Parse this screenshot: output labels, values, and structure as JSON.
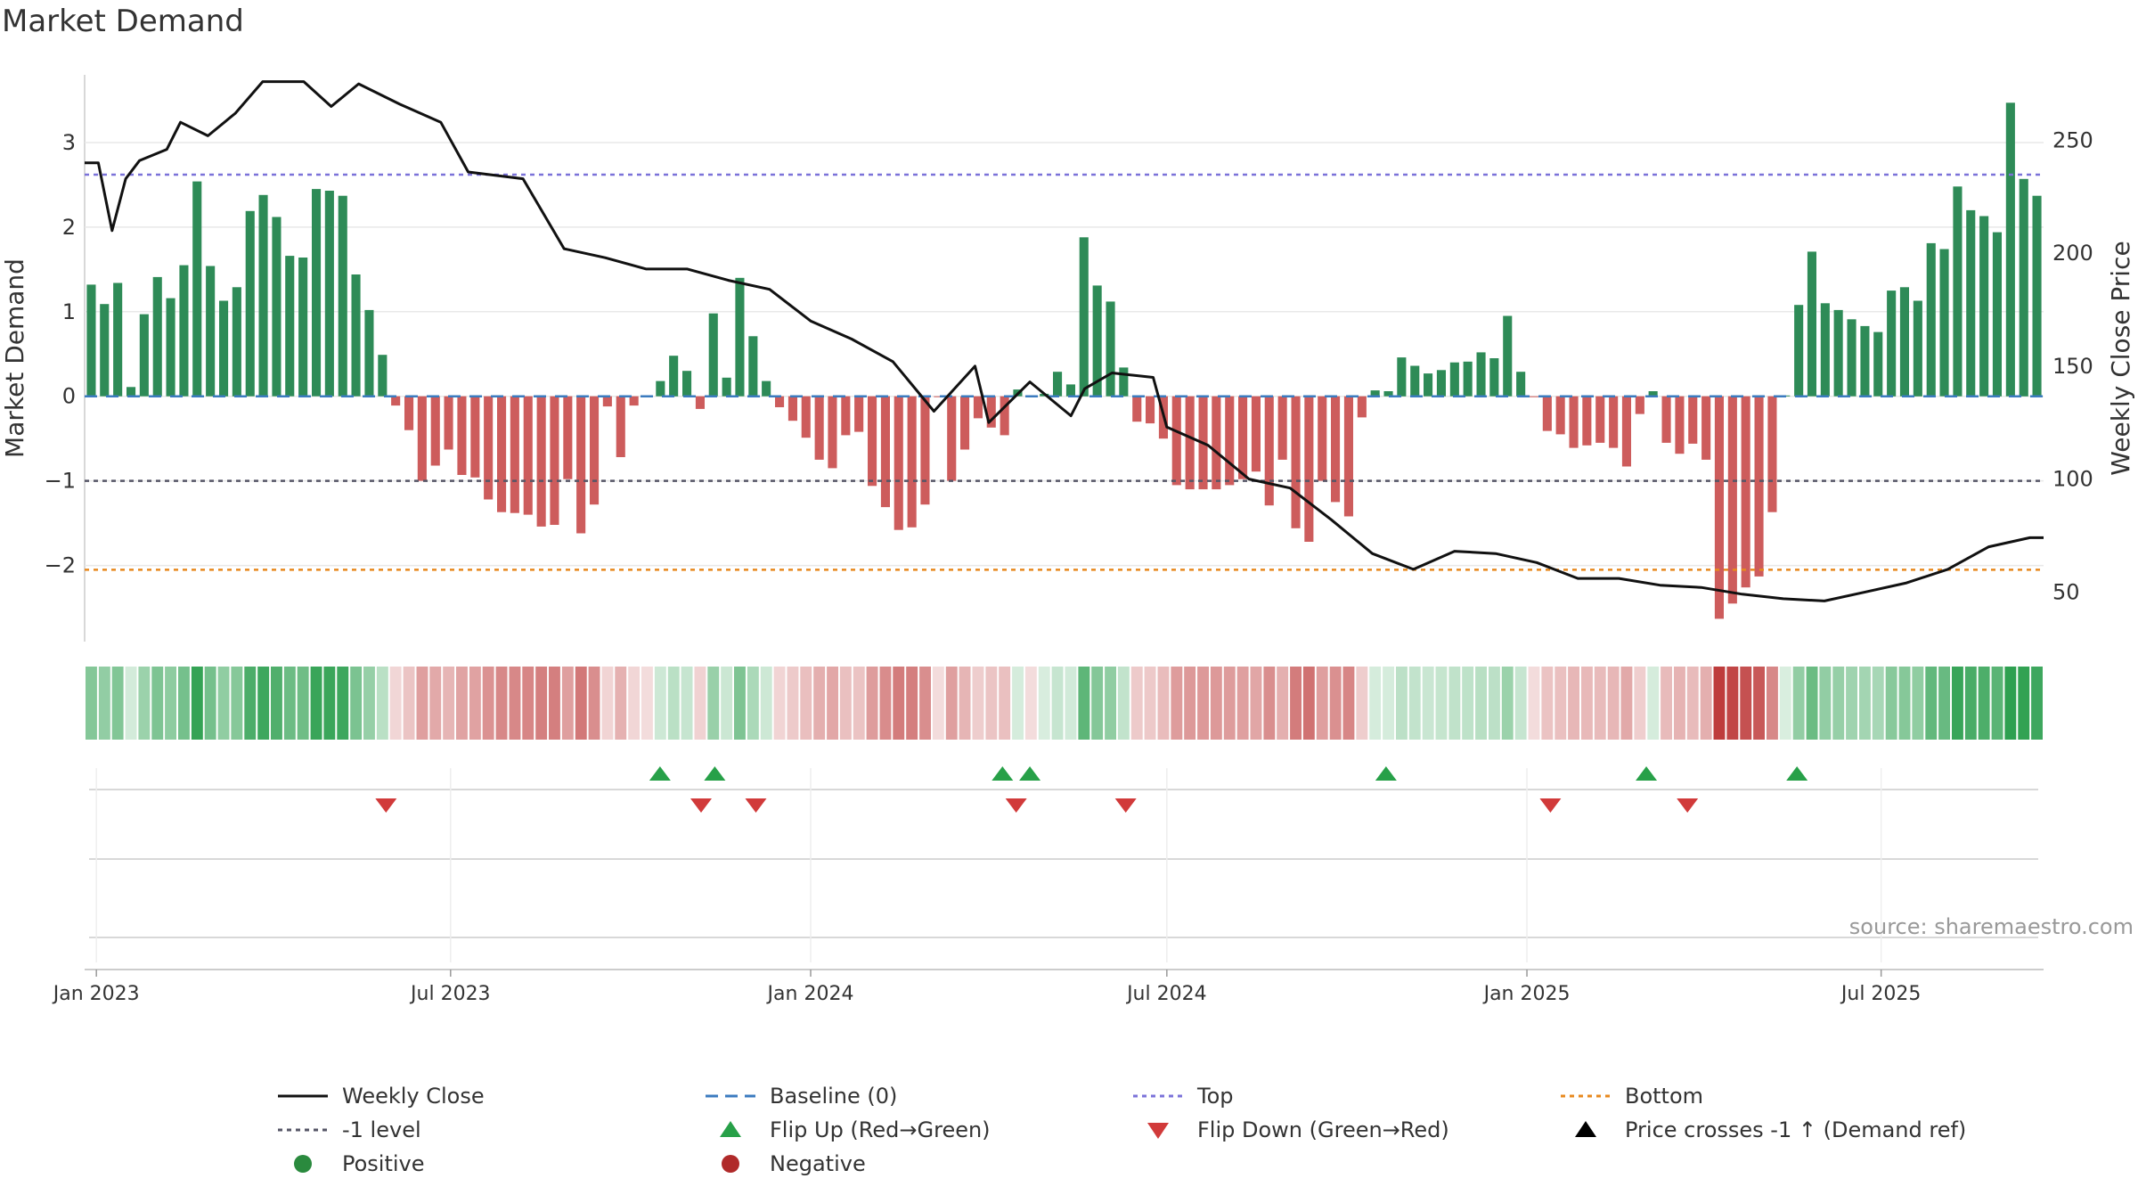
{
  "chart_data": {
    "type": "bar",
    "title": "Market Demand",
    "ylabel_left": "Market Demand",
    "ylabel_right": "Weekly Close Price",
    "left_ylim": [
      -2.9,
      3.8
    ],
    "right_ylim": [
      28,
      279
    ],
    "left_ticks": [
      3,
      2,
      1,
      0,
      -1,
      -2
    ],
    "left_tick_labels": [
      "3",
      "2",
      "1",
      "0",
      "−1",
      "−2"
    ],
    "right_ticks": [
      250,
      200,
      150,
      100,
      50
    ],
    "right_tick_labels": [
      "250",
      "200",
      "150",
      "100",
      "50"
    ],
    "x_start": "2022-12-26",
    "x_end": "2025-09-22",
    "x_ticks": [
      "2023-01-01",
      "2023-07-01",
      "2024-01-01",
      "2024-07-01",
      "2025-01-01",
      "2025-07-01"
    ],
    "x_tick_labels": [
      "Jan 2023",
      "Jul 2023",
      "Jan 2024",
      "Jul 2024",
      "Jan 2025",
      "Jul 2025"
    ],
    "top_level": 2.62,
    "bottom_level": -2.05,
    "minus_one_level": -1,
    "baseline": 0,
    "demand_values": [
      1.32,
      1.09,
      1.34,
      0.11,
      0.97,
      1.41,
      1.16,
      1.55,
      2.54,
      1.54,
      1.13,
      1.29,
      2.19,
      2.38,
      2.12,
      1.66,
      1.64,
      2.45,
      2.43,
      2.37,
      1.44,
      1.02,
      0.49,
      -0.11,
      -0.4,
      -1.0,
      -0.82,
      -0.63,
      -0.93,
      -0.96,
      -1.22,
      -1.37,
      -1.38,
      -1.4,
      -1.54,
      -1.52,
      -0.98,
      -1.62,
      -1.28,
      -0.12,
      -0.72,
      -0.11,
      -0.01,
      0.18,
      0.48,
      0.3,
      -0.15,
      0.98,
      0.22,
      1.4,
      0.71,
      0.18,
      -0.13,
      -0.29,
      -0.49,
      -0.75,
      -0.85,
      -0.46,
      -0.42,
      -1.06,
      -1.31,
      -1.58,
      -1.55,
      -1.28,
      -0.01,
      -1.0,
      -0.63,
      -0.26,
      -0.37,
      -0.46,
      0.08,
      -0.01,
      0.03,
      0.29,
      0.14,
      1.88,
      1.31,
      1.12,
      0.34,
      -0.3,
      -0.32,
      -0.5,
      -1.05,
      -1.1,
      -1.1,
      -1.1,
      -1.05,
      -0.98,
      -0.89,
      -1.29,
      -0.75,
      -1.56,
      -1.72,
      -1.0,
      -1.25,
      -1.42,
      -0.25,
      0.07,
      0.06,
      0.46,
      0.36,
      0.27,
      0.31,
      0.4,
      0.41,
      0.52,
      0.45,
      0.95,
      0.29,
      -0.01,
      -0.41,
      -0.45,
      -0.61,
      -0.58,
      -0.55,
      -0.61,
      -0.83,
      -0.21,
      0.06,
      -0.55,
      -0.68,
      -0.56,
      -0.75,
      -2.63,
      -2.45,
      -2.26,
      -2.13,
      -1.37,
      0.01,
      1.08,
      1.71,
      1.1,
      1.02,
      0.91,
      0.83,
      0.76,
      1.25,
      1.29,
      1.13,
      1.81,
      1.74,
      2.48,
      2.2,
      2.13,
      1.94,
      3.47,
      2.57,
      2.37
    ],
    "price_x": [
      "2022-12-26",
      "2023-01-02",
      "2023-01-09",
      "2023-01-16",
      "2023-01-23",
      "2023-02-06",
      "2023-02-13",
      "2023-02-27",
      "2023-03-13",
      "2023-03-27",
      "2023-04-17",
      "2023-05-01",
      "2023-05-15",
      "2023-06-05",
      "2023-06-26",
      "2023-07-10",
      "2023-08-07",
      "2023-08-28",
      "2023-09-18",
      "2023-10-09",
      "2023-10-30",
      "2023-11-20",
      "2023-12-11",
      "2024-01-01",
      "2024-01-22",
      "2024-02-12",
      "2024-03-04",
      "2024-03-25",
      "2024-04-01",
      "2024-04-22",
      "2024-05-13",
      "2024-05-20",
      "2024-06-03",
      "2024-06-24",
      "2024-07-01",
      "2024-07-22",
      "2024-08-12",
      "2024-09-02",
      "2024-09-23",
      "2024-10-14",
      "2024-11-04",
      "2024-11-25",
      "2024-12-16",
      "2025-01-06",
      "2025-01-27",
      "2025-02-17",
      "2025-03-10",
      "2025-03-31",
      "2025-04-21",
      "2025-05-12",
      "2025-06-02",
      "2025-06-23",
      "2025-07-14",
      "2025-08-04",
      "2025-08-25",
      "2025-09-15",
      "2025-09-22"
    ],
    "price_values": [
      240,
      240,
      210,
      233,
      241,
      246,
      258,
      252,
      262,
      276,
      276,
      265,
      275,
      266,
      258,
      236,
      233,
      202,
      198,
      193,
      193,
      188,
      184,
      170,
      162,
      152,
      130,
      150,
      125,
      143,
      128,
      140,
      147,
      145,
      123,
      115,
      100,
      96,
      82,
      67,
      60,
      68,
      67,
      63,
      56,
      56,
      53,
      52,
      49,
      47,
      46,
      50,
      54,
      60,
      70,
      74,
      74
    ],
    "demand_strip_colors": "green/red tiles by sign, shade by magnitude",
    "flip_up_dates": [
      "2023-10-16",
      "2023-11-13",
      "2024-04-08",
      "2024-04-22",
      "2024-10-21",
      "2025-03-03",
      "2025-05-19"
    ],
    "flip_down_dates": [
      "2023-05-29",
      "2023-11-06",
      "2023-12-04",
      "2024-04-15",
      "2024-06-10",
      "2025-01-13",
      "2025-03-24"
    ],
    "source_text": "source: sharemaestro.com"
  },
  "legend": [
    {
      "key": "weekly_close",
      "label": "Weekly Close",
      "symbol": "line-solid",
      "color": "#111111"
    },
    {
      "key": "baseline",
      "label": "Baseline (0)",
      "symbol": "line-dash",
      "color": "#3b7bbf"
    },
    {
      "key": "top",
      "label": "Top",
      "symbol": "line-dot",
      "color": "#7b72d9"
    },
    {
      "key": "bottom",
      "label": "Bottom",
      "symbol": "line-dot",
      "color": "#e8891e"
    },
    {
      "key": "minus_one",
      "label": "-1 level",
      "symbol": "line-dot",
      "color": "#555566"
    },
    {
      "key": "flip_up",
      "label": "Flip Up (Red→Green)",
      "symbol": "triangle-up",
      "color": "#27a048"
    },
    {
      "key": "flip_down",
      "label": "Flip Down (Green→Red)",
      "symbol": "triangle-down",
      "color": "#d13a3a"
    },
    {
      "key": "price_cross",
      "label": "Price crosses -1 ↑ (Demand ref)",
      "symbol": "triangle-up",
      "color": "#000000"
    },
    {
      "key": "positive",
      "label": "Positive",
      "symbol": "circle",
      "color": "#2a8a3e"
    },
    {
      "key": "negative",
      "label": "Negative",
      "symbol": "circle",
      "color": "#b02a2a"
    }
  ],
  "colors": {
    "bar_positive": "#2e8b57",
    "bar_negative": "#cd5c5c",
    "price_line": "#111111",
    "baseline": "#3b7bbf",
    "top_line": "#7b72d9",
    "bottom_line": "#e8891e",
    "minus_one_line": "#555566",
    "flip_up": "#27a048",
    "flip_down": "#d13a3a",
    "grid": "#e8e8e8"
  }
}
